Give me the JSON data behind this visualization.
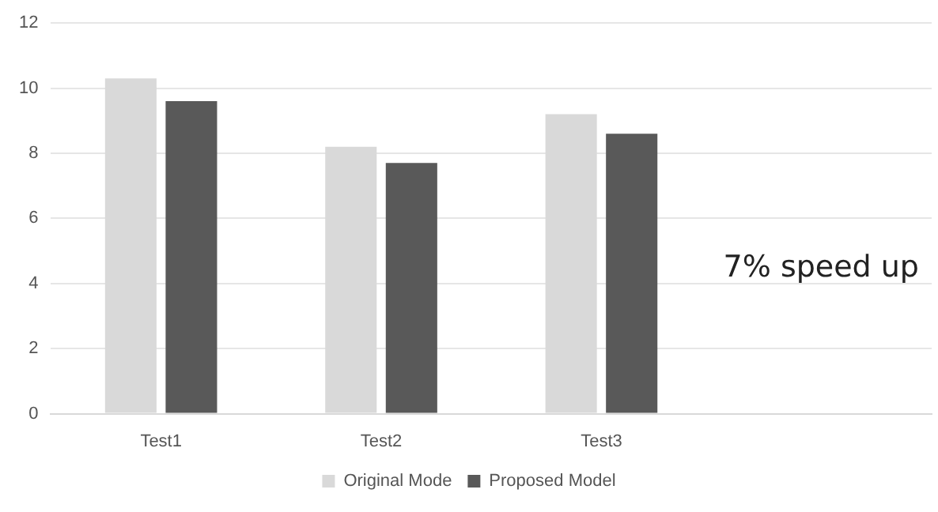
{
  "chart_data": {
    "type": "bar",
    "categories": [
      "Test1",
      "Test2",
      "Test3",
      null
    ],
    "series": [
      {
        "name": "Original Mode",
        "color": "#d9d9d9",
        "values": [
          10.3,
          8.2,
          9.2,
          null
        ]
      },
      {
        "name": "Proposed Model",
        "color": "#595959",
        "values": [
          9.6,
          7.7,
          8.6,
          null
        ]
      }
    ],
    "ylim": [
      0,
      12
    ],
    "yticks": [
      0,
      2,
      4,
      6,
      8,
      10,
      12
    ],
    "grid": "y",
    "legend": "bottom",
    "annotations": [
      "7% speed up"
    ]
  }
}
